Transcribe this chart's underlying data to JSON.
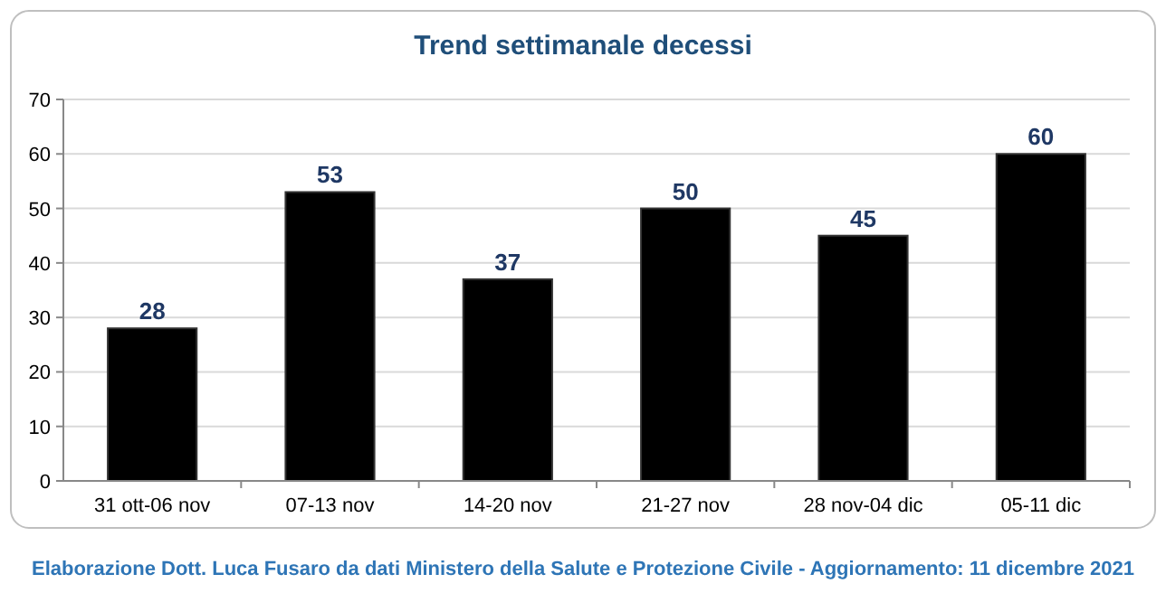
{
  "chart_data": {
    "type": "bar",
    "title": "Trend settimanale decessi",
    "categories": [
      "31 ott-06 nov",
      "07-13 nov",
      "14-20 nov",
      "21-27 nov",
      "28 nov-04 dic",
      "05-11 dic"
    ],
    "values": [
      28,
      53,
      37,
      50,
      45,
      60
    ],
    "color": "#000000",
    "ylim": [
      0,
      70
    ],
    "yticks": [
      0,
      10,
      20,
      30,
      40,
      50,
      60,
      70
    ],
    "grid": "y",
    "data_labels": true,
    "annotations": [
      "Elaborazione Dott. Luca Fusaro da dati Ministero della Salute e Protezione Civile - Aggiornamento: 11 dicembre 2021"
    ]
  }
}
